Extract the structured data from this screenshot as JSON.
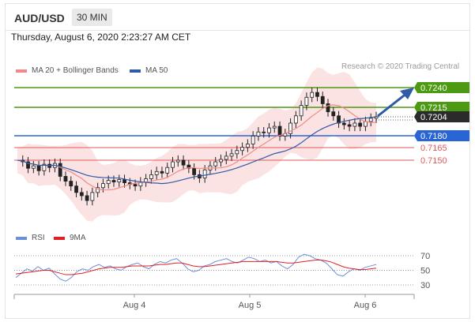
{
  "header": {
    "pair": "AUD/USD",
    "timeframe": "30 MIN"
  },
  "datetime": "Thursday, August 6, 2020 2:23:27 AM CET",
  "main_legend": [
    {
      "label": "MA 20 + Bollinger Bands",
      "color": "#f08a8a"
    },
    {
      "label": "MA 50",
      "color": "#2f5aa8"
    }
  ],
  "credit": "Research © 2020 Trading Central",
  "price_levels": [
    {
      "label": "0.7240",
      "color": "#4c9a12",
      "kind": "resistance"
    },
    {
      "label": "0.7215",
      "color": "#4c9a12",
      "kind": "resistance"
    },
    {
      "label": "0.7204",
      "color": "#2b2b2b",
      "kind": "last"
    },
    {
      "label": "0.7180",
      "color": "#2965d4",
      "kind": "pivot"
    },
    {
      "label": "0.7165",
      "color": "#e05a5a",
      "kind": "support"
    },
    {
      "label": "0.7150",
      "color": "#e05a5a",
      "kind": "support"
    }
  ],
  "rsi_legend": [
    {
      "label": "RSI",
      "color": "#6e8fd8"
    },
    {
      "label": "9MA",
      "color": "#e02020"
    }
  ],
  "rsi_levels": [
    "70",
    "50",
    "30"
  ],
  "x_labels": [
    "Aug 4",
    "Aug 5",
    "Aug 6"
  ],
  "chart_data": {
    "type": "candlestick",
    "title": "AUD/USD",
    "timeframe": "30 MIN",
    "levels": [
      0.724,
      0.7215,
      0.7204,
      0.718,
      0.7165,
      0.715
    ],
    "x_ticks": [
      "Aug 4",
      "Aug 5",
      "Aug 6"
    ],
    "price_path": [
      0.715,
      0.7148,
      0.714,
      0.7143,
      0.7137,
      0.7145,
      0.7141,
      0.7146,
      0.713,
      0.7124,
      0.7118,
      0.711,
      0.7106,
      0.71,
      0.711,
      0.7116,
      0.7121,
      0.7125,
      0.7123,
      0.7126,
      0.7122,
      0.712,
      0.7118,
      0.7123,
      0.7127,
      0.7132,
      0.7136,
      0.7134,
      0.7141,
      0.7148,
      0.715,
      0.7144,
      0.714,
      0.7132,
      0.7128,
      0.7138,
      0.7143,
      0.7148,
      0.7151,
      0.7155,
      0.7158,
      0.7162,
      0.7166,
      0.717,
      0.718,
      0.7185,
      0.7184,
      0.719,
      0.7192,
      0.718,
      0.7183,
      0.7196,
      0.7205,
      0.7218,
      0.7228,
      0.7234,
      0.7229,
      0.722,
      0.721,
      0.7205,
      0.7196,
      0.7194,
      0.7192,
      0.7196,
      0.7192,
      0.7198,
      0.7202,
      0.7204
    ],
    "rsi": [
      40,
      46,
      52,
      49,
      55,
      50,
      53,
      45,
      38,
      35,
      40,
      48,
      52,
      50,
      55,
      58,
      54,
      56,
      52,
      50,
      55,
      58,
      60,
      55,
      52,
      58,
      62,
      60,
      64,
      66,
      60,
      52,
      48,
      50,
      56,
      58,
      62,
      64,
      66,
      62,
      60,
      64,
      68,
      66,
      62,
      64,
      60,
      62,
      56,
      52,
      58,
      68,
      72,
      70,
      66,
      64,
      60,
      52,
      44,
      42,
      48,
      52,
      50,
      54,
      56,
      58
    ],
    "rsi_ma": [
      45,
      46,
      47,
      48,
      49,
      50,
      50,
      48,
      46,
      44,
      44,
      45,
      46,
      48,
      50,
      52,
      53,
      54,
      54,
      54,
      55,
      56,
      56,
      56,
      56,
      57,
      58,
      58,
      59,
      60,
      60,
      58,
      56,
      55,
      55,
      56,
      57,
      58,
      59,
      60,
      61,
      62,
      62,
      62,
      62,
      62,
      62,
      62,
      61,
      60,
      60,
      61,
      62,
      63,
      64,
      64,
      63,
      61,
      58,
      55,
      53,
      52,
      51,
      51,
      52,
      53
    ],
    "rsi_range": [
      30,
      70
    ],
    "ylim": [
      0.7095,
      0.7245
    ]
  }
}
